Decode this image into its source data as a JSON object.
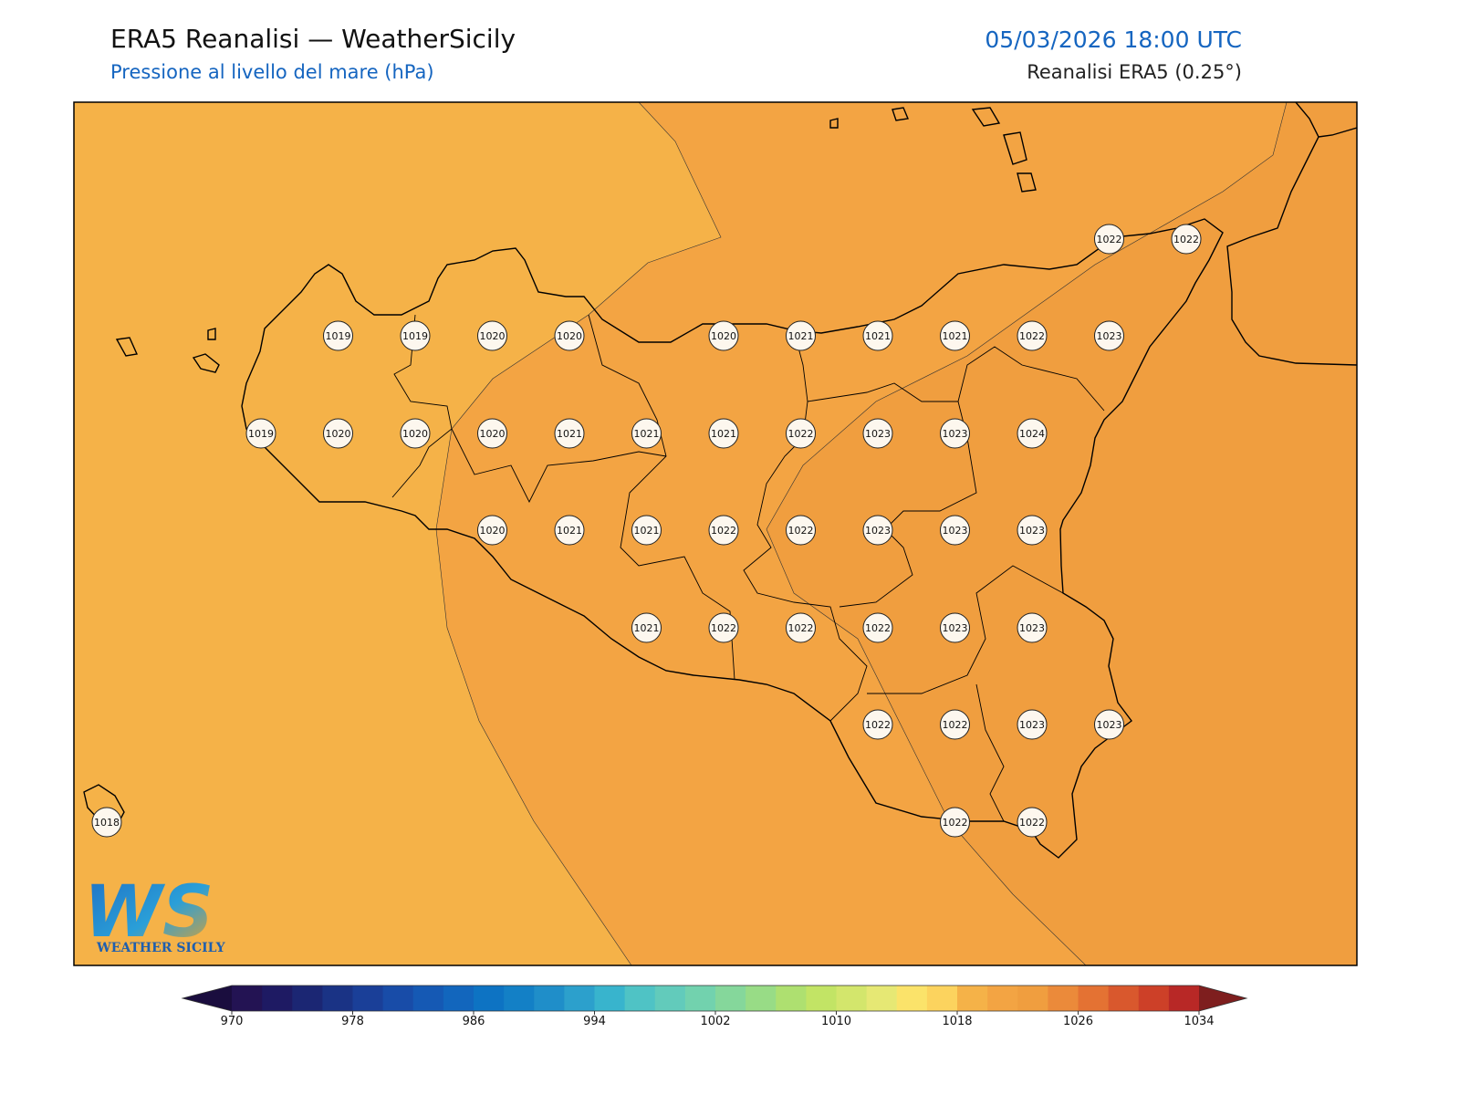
{
  "header": {
    "title": "ERA5 Reanalisi — WeatherSicily",
    "subtitle": "Pressione al livello del mare (hPa)",
    "datetime": "05/03/2026 18:00 UTC",
    "source": "Reanalisi ERA5 (0.25°)"
  },
  "map": {
    "levels": [
      1018,
      1020,
      1022
    ],
    "stations": [
      1022,
      1022,
      1019,
      1019,
      1020,
      1020,
      1020,
      1021,
      1021,
      1021,
      1022,
      1023,
      1019,
      1020,
      1020,
      1020,
      1021,
      1021,
      1021,
      1022,
      1023,
      1023,
      1024,
      1020,
      1021,
      1021,
      1022,
      1022,
      1023,
      1023,
      1023,
      1021,
      1022,
      1022,
      1022,
      1023,
      1023,
      1022,
      1022,
      1023,
      1023,
      1018,
      1022,
      1022
    ]
  },
  "colorbar": {
    "bounds": [
      970,
      1034
    ],
    "ticks": [
      970,
      978,
      986,
      994,
      1002,
      1010,
      1018,
      1026,
      1034
    ],
    "colors": [
      "#231353",
      "#1e1a63",
      "#1b2673",
      "#1a3385",
      "#1a3f98",
      "#184ca8",
      "#1559b4",
      "#1266bd",
      "#0d73c3",
      "#1380c6",
      "#1f8ec9",
      "#2ca0cc",
      "#38b4cd",
      "#4fc3c5",
      "#62cbbb",
      "#72d2ae",
      "#85d79b",
      "#98dc86",
      "#aee070",
      "#c2e465",
      "#d3e66c",
      "#e6e874",
      "#fbe36a",
      "#fcd35e",
      "#f5b248",
      "#f3a443",
      "#f09e3f",
      "#eb8a3a",
      "#e47233",
      "#d9582d",
      "#cd4028",
      "#b82826"
    ],
    "extend_colors": [
      "#1a0d3e",
      "#7e1e1e"
    ]
  },
  "logo": {
    "mark": "WS",
    "text": "WEATHER SICILY"
  }
}
